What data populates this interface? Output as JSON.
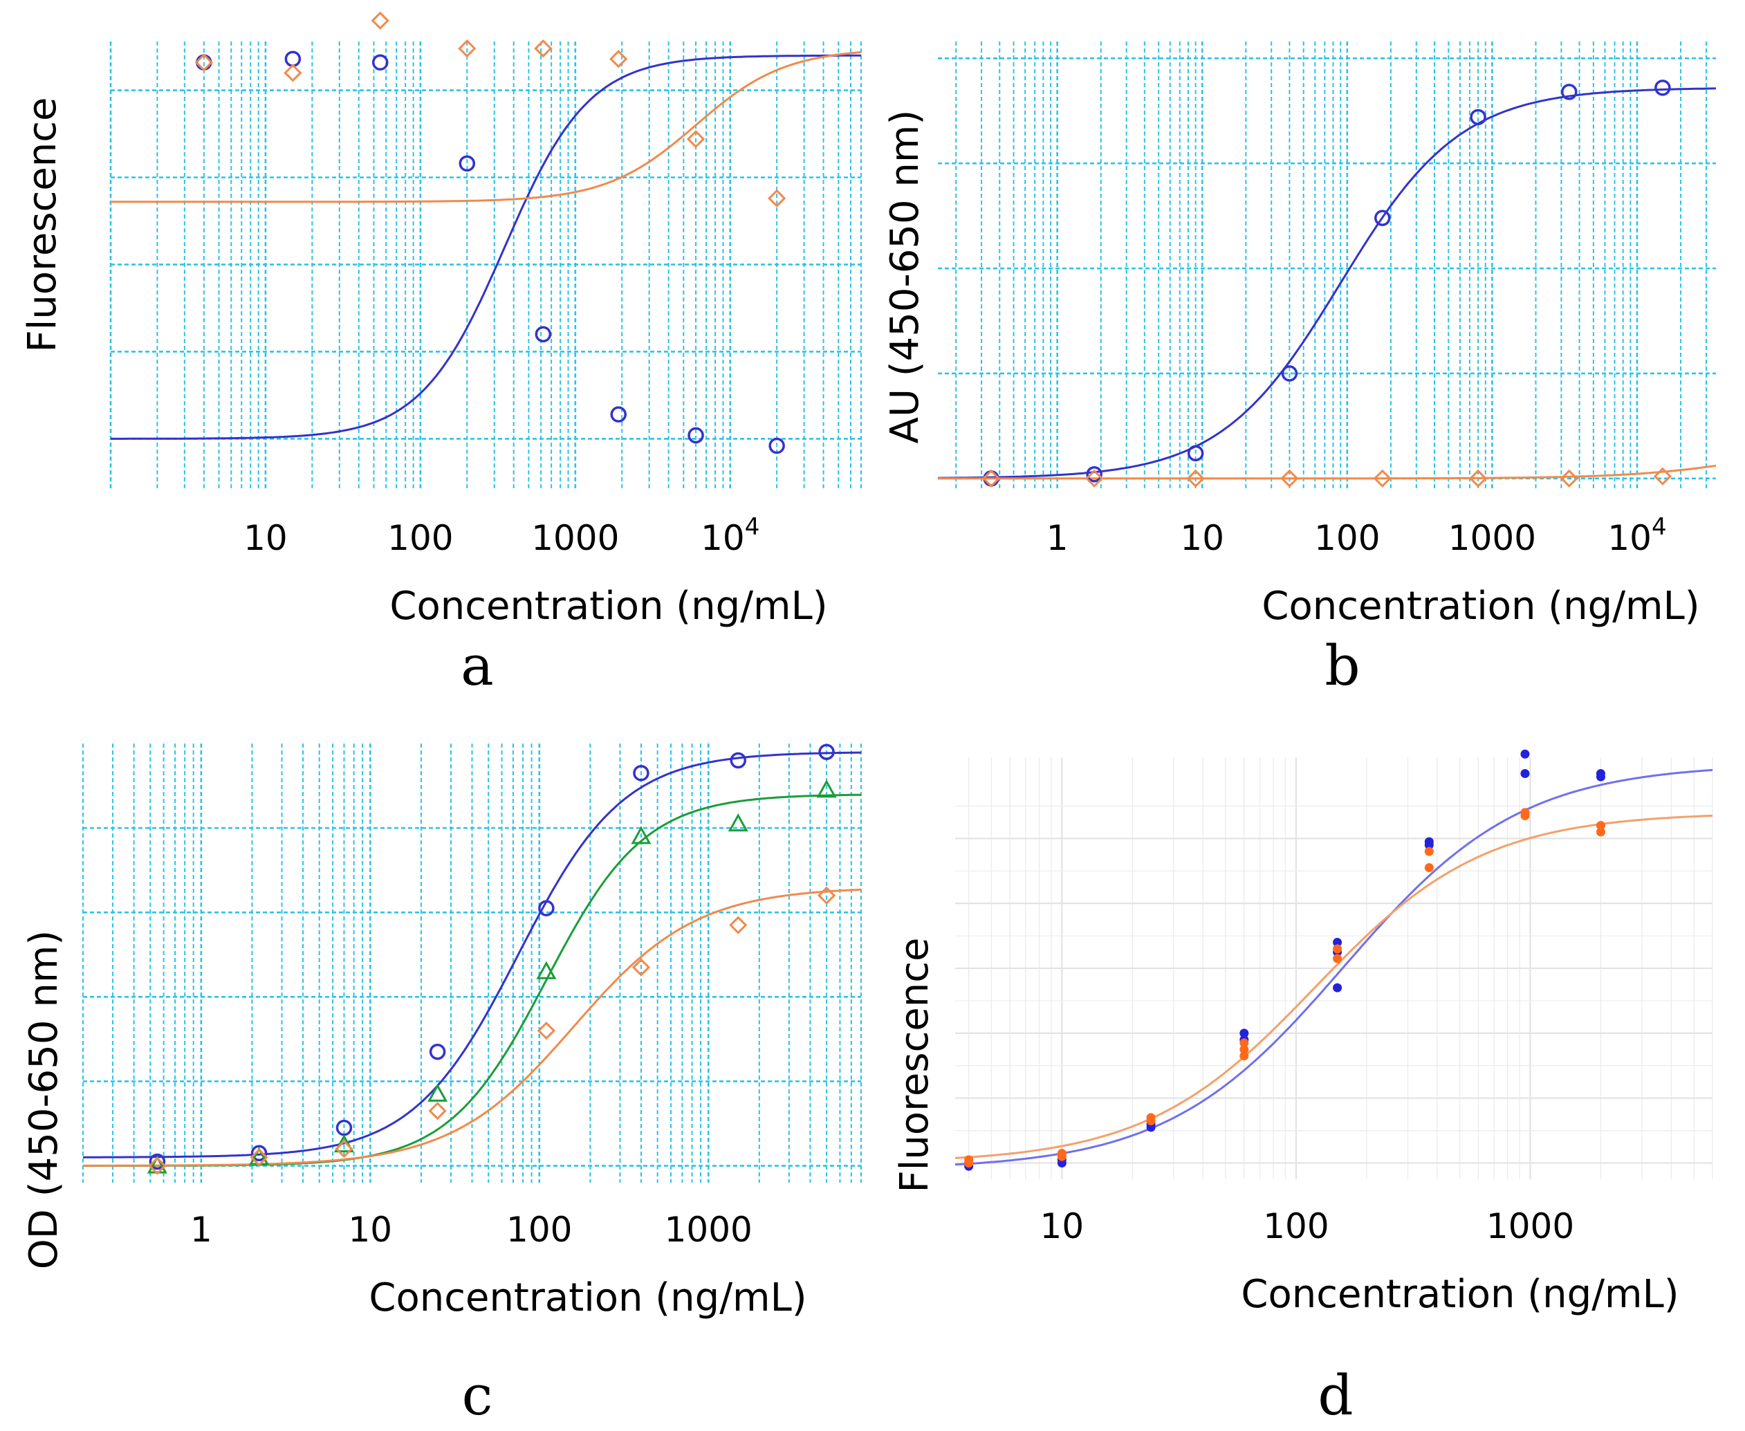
{
  "chart_data": [
    {
      "id": "a",
      "type": "line",
      "style": "cyan",
      "panel_letter": "a",
      "xlabel": "Concentration (ng/mL)",
      "ylabel": "Fluorescence",
      "xscale": "log",
      "xlim": [
        1,
        70000
      ],
      "ylim": [
        -0.15,
        1.14
      ],
      "y_gridlines": [
        0,
        0.25,
        0.5,
        0.75,
        1.0
      ],
      "xticks": [
        {
          "value": 10,
          "label": "10"
        },
        {
          "value": 100,
          "label": "100"
        },
        {
          "value": 1000,
          "label": "1000"
        },
        {
          "value": 10000,
          "label": "10",
          "sup": "4"
        }
      ],
      "series": [
        {
          "name": "blue",
          "color": "#3333cc",
          "marker": "circle",
          "fit": {
            "bottom": 0.0,
            "top": 1.1,
            "ec50": 350,
            "hill": 1.6
          },
          "x": [
            4,
            15,
            55,
            200,
            620,
            1900,
            6000,
            20000
          ],
          "y": [
            1.08,
            1.09,
            1.08,
            0.79,
            0.3,
            0.07,
            0.01,
            -0.02
          ]
        },
        {
          "name": "orange",
          "color": "#f08a4b",
          "marker": "diamond",
          "fit": {
            "bottom": 0.68,
            "top": 1.12,
            "ec50": 6000,
            "hill": 1.5
          },
          "x": [
            4,
            15,
            55,
            200,
            620,
            1900,
            6000,
            20000
          ],
          "y": [
            1.08,
            1.05,
            1.2,
            1.12,
            1.12,
            1.09,
            0.86,
            0.69
          ]
        }
      ]
    },
    {
      "id": "b",
      "type": "line",
      "style": "cyan",
      "panel_letter": "b",
      "xlabel": "Concentration (ng/mL)",
      "ylabel": "AU (450-650 nm)",
      "xscale": "log",
      "xlim": [
        0.15,
        35000
      ],
      "ylim": [
        -0.03,
        1.04
      ],
      "y_gridlines": [
        0,
        0.25,
        0.5,
        0.75,
        1.0
      ],
      "xticks": [
        {
          "value": 1,
          "label": "1"
        },
        {
          "value": 10,
          "label": "10"
        },
        {
          "value": 100,
          "label": "100"
        },
        {
          "value": 1000,
          "label": "1000"
        },
        {
          "value": 10000,
          "label": "10",
          "sup": "4"
        }
      ],
      "series": [
        {
          "name": "blue",
          "color": "#3333cc",
          "marker": "circle",
          "fit": {
            "bottom": 0.0,
            "top": 0.93,
            "ec50": 90,
            "hill": 1.05
          },
          "x": [
            0.35,
            1.8,
            9,
            40,
            175,
            800,
            3400,
            15000
          ],
          "y": [
            0.0,
            0.01,
            0.06,
            0.25,
            0.62,
            0.86,
            0.92,
            0.93
          ]
        },
        {
          "name": "orange",
          "color": "#f08a4b",
          "marker": "diamond",
          "fit": {
            "bottom": 0.0,
            "top": 0.1,
            "ec50": 80000,
            "hill": 1.0
          },
          "x": [
            0.35,
            1.8,
            9,
            40,
            175,
            800,
            3400,
            15000
          ],
          "y": [
            0.0,
            0.0,
            0.0,
            0.0,
            0.0,
            0.0,
            0.0,
            0.005
          ]
        }
      ]
    },
    {
      "id": "c",
      "type": "line",
      "style": "cyan",
      "panel_letter": "c",
      "xlabel": "Concentration (ng/mL)",
      "ylabel": "OD (450-650 nm)",
      "xscale": "log",
      "xlim": [
        0.2,
        8000
      ],
      "ylim": [
        -0.04,
        1.0
      ],
      "y_gridlines": [
        0,
        0.2,
        0.4,
        0.6,
        0.8
      ],
      "xticks": [
        {
          "value": 1,
          "label": "1"
        },
        {
          "value": 10,
          "label": "10"
        },
        {
          "value": 100,
          "label": "100"
        },
        {
          "value": 1000,
          "label": "1000"
        }
      ],
      "series": [
        {
          "name": "blue",
          "color": "#3333cc",
          "marker": "circle",
          "fit": {
            "bottom": 0.02,
            "top": 0.98,
            "ec50": 75,
            "hill": 1.4
          },
          "x": [
            0.55,
            2.2,
            7,
            25,
            110,
            400,
            1500,
            5000
          ],
          "y": [
            0.01,
            0.03,
            0.09,
            0.27,
            0.61,
            0.93,
            0.96,
            0.98
          ]
        },
        {
          "name": "green",
          "color": "#1a9e3a",
          "marker": "triangle",
          "fit": {
            "bottom": 0.0,
            "top": 0.88,
            "ec50": 110,
            "hill": 1.5
          },
          "x": [
            0.55,
            2.2,
            7,
            25,
            110,
            400,
            1500,
            5000
          ],
          "y": [
            0.0,
            0.02,
            0.05,
            0.17,
            0.46,
            0.78,
            0.81,
            0.89
          ]
        },
        {
          "name": "orange",
          "color": "#f08a4b",
          "marker": "diamond",
          "fit": {
            "bottom": 0.0,
            "top": 0.66,
            "ec50": 160,
            "hill": 1.2
          },
          "x": [
            0.55,
            2.2,
            7,
            25,
            110,
            400,
            1500,
            5000
          ],
          "y": [
            0.0,
            0.02,
            0.04,
            0.13,
            0.32,
            0.47,
            0.57,
            0.64
          ]
        }
      ]
    },
    {
      "id": "d",
      "type": "scatter",
      "style": "gray",
      "panel_letter": "d",
      "xlabel": "Concentration (ng/mL)",
      "ylabel": "Fluorescence",
      "xscale": "log",
      "xlim": [
        3.5,
        6000
      ],
      "ylim": [
        -0.05,
        1.25
      ],
      "y_gridlines": [
        0,
        0.2,
        0.4,
        0.6,
        0.8,
        1.0
      ],
      "xticks": [
        {
          "value": 10,
          "label": "10"
        },
        {
          "value": 100,
          "label": "100"
        },
        {
          "value": 1000,
          "label": "1000"
        }
      ],
      "series": [
        {
          "name": "blue",
          "color": "#2222dd",
          "curve_color": "#7070ee",
          "marker": "dot",
          "fit": {
            "bottom": -0.02,
            "top": 1.23,
            "ec50": 160,
            "hill": 1.15
          },
          "x": [
            4,
            4,
            10,
            10,
            24,
            24,
            60,
            60,
            150,
            150,
            150,
            370,
            370,
            950,
            950,
            2000,
            2000
          ],
          "y": [
            0.0,
            -0.01,
            0.0,
            0.01,
            0.11,
            0.12,
            0.4,
            0.38,
            0.68,
            0.54,
            0.65,
            0.99,
            0.98,
            1.26,
            1.2,
            1.2,
            1.19
          ]
        },
        {
          "name": "orange",
          "color": "#ff6a1a",
          "curve_color": "#f4a06a",
          "marker": "dot",
          "fit": {
            "bottom": 0.0,
            "top": 1.08,
            "ec50": 120,
            "hill": 1.2
          },
          "x": [
            4,
            4,
            10,
            10,
            24,
            24,
            60,
            60,
            60,
            150,
            150,
            370,
            370,
            950,
            950,
            2000,
            2000
          ],
          "y": [
            0.0,
            0.01,
            0.03,
            0.02,
            0.14,
            0.13,
            0.37,
            0.33,
            0.35,
            0.66,
            0.63,
            0.96,
            0.91,
            1.08,
            1.07,
            1.04,
            1.02
          ]
        }
      ]
    }
  ]
}
